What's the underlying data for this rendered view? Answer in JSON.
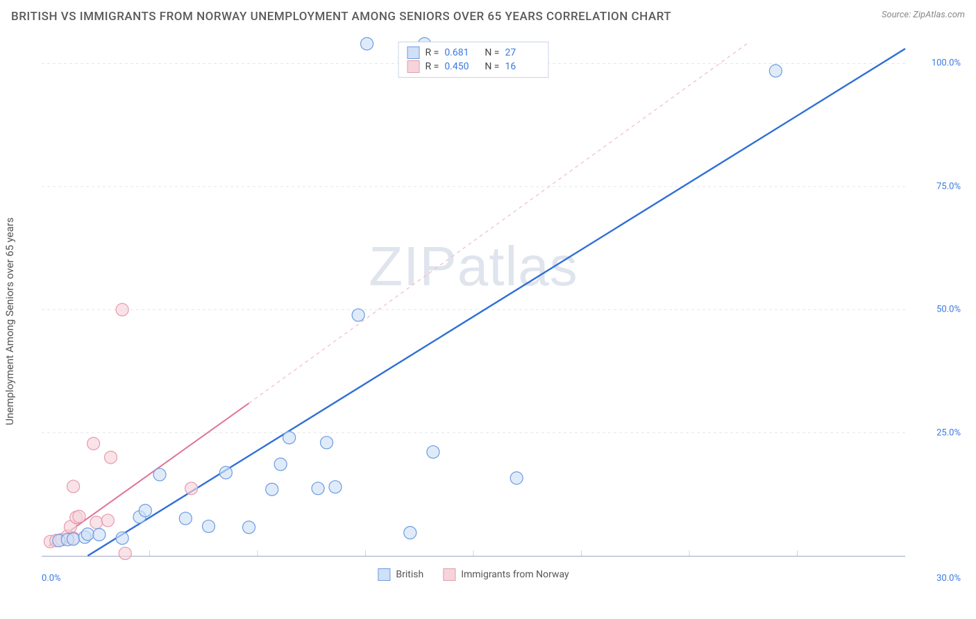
{
  "title": "BRITISH VS IMMIGRANTS FROM NORWAY UNEMPLOYMENT AMONG SENIORS OVER 65 YEARS CORRELATION CHART",
  "source": "Source: ZipAtlas.com",
  "ylabel": "Unemployment Among Seniors over 65 years",
  "watermark": "ZIPatlas",
  "chart": {
    "type": "scatter",
    "background_color": "#ffffff",
    "xlim": [
      0,
      30
    ],
    "ylim": [
      0,
      105
    ],
    "x_minor_ticks": [
      3.75,
      7.5,
      11.25,
      15,
      18.75,
      22.5,
      26.25
    ],
    "x_minor_color": "#c9d3e6",
    "y_gridlines": [
      25,
      50,
      75,
      100
    ],
    "y_grid_color": "#e3e6ed",
    "y_grid_dash": "4,4",
    "xlabel_min": "0.0%",
    "xlabel_max": "30.0%",
    "ytick_labels": [
      "25.0%",
      "50.0%",
      "75.0%",
      "100.0%"
    ],
    "marker_radius": 9,
    "marker_stroke_width": 1.2,
    "series": [
      {
        "name": "British",
        "fill": "#cfe0f7",
        "stroke": "#6a9be0",
        "fill_opacity": 0.65,
        "R": "0.681",
        "N": "27",
        "points": [
          [
            0.6,
            3.1
          ],
          [
            0.9,
            3.3
          ],
          [
            1.1,
            3.4
          ],
          [
            1.5,
            3.8
          ],
          [
            1.6,
            4.4
          ],
          [
            2.0,
            4.3
          ],
          [
            3.4,
            7.9
          ],
          [
            3.6,
            9.2
          ],
          [
            2.8,
            3.6
          ],
          [
            4.1,
            16.5
          ],
          [
            5.0,
            7.6
          ],
          [
            5.8,
            6.0
          ],
          [
            6.4,
            16.9
          ],
          [
            7.2,
            5.8
          ],
          [
            8.0,
            13.5
          ],
          [
            8.3,
            18.6
          ],
          [
            8.6,
            24.0
          ],
          [
            9.6,
            13.7
          ],
          [
            9.9,
            23.0
          ],
          [
            10.2,
            14.0
          ],
          [
            12.8,
            4.7
          ],
          [
            13.6,
            21.1
          ],
          [
            16.5,
            15.8
          ],
          [
            11.0,
            48.9
          ],
          [
            13.3,
            104.0
          ],
          [
            25.5,
            98.5
          ],
          [
            11.3,
            104.0
          ]
        ],
        "trend": {
          "x1": 1.6,
          "y1": 0,
          "x2": 30,
          "y2": 103.0,
          "color": "#2f6fd6",
          "width": 2.4,
          "dash": null
        }
      },
      {
        "name": "Immigrants from Norway",
        "fill": "#f6d4dc",
        "stroke": "#e59aad",
        "fill_opacity": 0.65,
        "R": "0.450",
        "N": "16",
        "points": [
          [
            0.3,
            2.9
          ],
          [
            0.5,
            3.1
          ],
          [
            0.7,
            3.3
          ],
          [
            0.9,
            4.0
          ],
          [
            1.0,
            5.9
          ],
          [
            1.1,
            3.6
          ],
          [
            1.2,
            7.8
          ],
          [
            1.3,
            8.0
          ],
          [
            1.1,
            14.1
          ],
          [
            1.8,
            22.8
          ],
          [
            2.4,
            20.0
          ],
          [
            1.9,
            6.8
          ],
          [
            2.3,
            7.2
          ],
          [
            5.2,
            13.7
          ],
          [
            2.8,
            50.0
          ],
          [
            2.9,
            0.5
          ]
        ],
        "trend": {
          "x1": 0.25,
          "y1": 2.0,
          "x2": 7.2,
          "y2": 31.0,
          "color": "#e17396",
          "width": 2.0,
          "dash": null
        },
        "trend_ext": {
          "x1": 7.2,
          "y1": 31.0,
          "x2": 24.5,
          "y2": 104.0,
          "color": "#f2b9c8",
          "width": 1.2,
          "dash": "5,5"
        }
      }
    ]
  },
  "legend_bottom": [
    {
      "label": "British",
      "fill": "#cfe0f7",
      "stroke": "#6a9be0"
    },
    {
      "label": "Immigrants from Norway",
      "fill": "#f6d4dc",
      "stroke": "#e59aad"
    }
  ]
}
